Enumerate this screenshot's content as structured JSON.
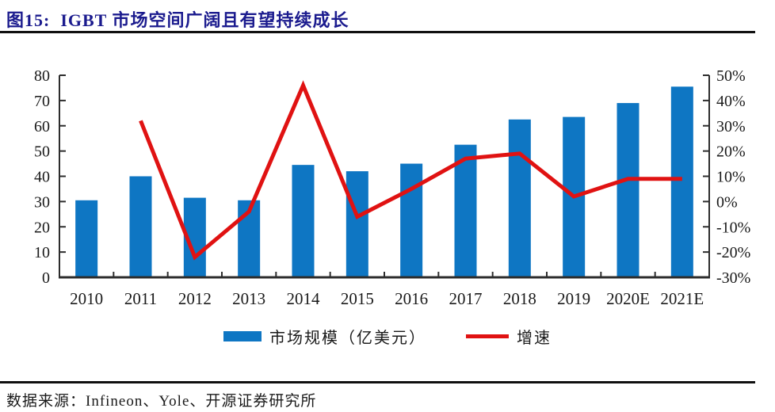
{
  "figure": {
    "title": "图15:  IGBT 市场空间广阔且有望持续成长",
    "source": "数据来源：Infineon、Yole、开源证券研究所"
  },
  "colors": {
    "bar": "#0e76c3",
    "line": "#e01212",
    "title": "#1b1b8e",
    "axis": "#2d2d2d",
    "text": "#1a1a1a",
    "rule": "#101010"
  },
  "chart_data": {
    "type": "bar",
    "subtype": "bar+line-combo",
    "title": "IGBT 市场空间广阔且有望持续成长",
    "categories": [
      "2010",
      "2011",
      "2012",
      "2013",
      "2014",
      "2015",
      "2016",
      "2017",
      "2018",
      "2019",
      "2020E",
      "2021E"
    ],
    "series": [
      {
        "name": "市场规模（亿美元）",
        "type": "bar",
        "axis": "left",
        "values": [
          30.5,
          40,
          31.5,
          30.5,
          44.5,
          42,
          45,
          52.5,
          62.5,
          63.5,
          69,
          75.5
        ]
      },
      {
        "name": "增速",
        "type": "line",
        "axis": "right",
        "unit": "%",
        "values": [
          null,
          32,
          -22,
          -4,
          46,
          -6,
          5,
          17,
          19,
          2,
          9,
          9
        ]
      }
    ],
    "left_axis": {
      "min": 0,
      "max": 80,
      "step": 10,
      "tick_labels": [
        "0",
        "10",
        "20",
        "30",
        "40",
        "50",
        "60",
        "70",
        "80"
      ]
    },
    "right_axis": {
      "min": -30,
      "max": 50,
      "step": 10,
      "tick_labels_top_down": [
        "50%",
        "40%",
        "30%",
        "20%",
        "10%",
        "0%",
        "-10%",
        "-20%",
        "-30%"
      ]
    },
    "grid": false,
    "legend_position": "bottom"
  }
}
